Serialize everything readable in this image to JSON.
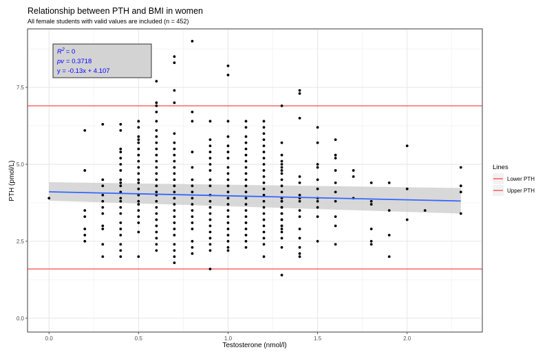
{
  "chart_data": {
    "type": "scatter",
    "title": "Relationship between PTH and BMI in women",
    "subtitle": "All female students with valid values are included (n = 452)",
    "xlabel": "Testosterone (nmol/l)",
    "ylabel": "PTH (pmol/L)",
    "xlim": [
      -0.12,
      2.42
    ],
    "ylim": [
      -0.45,
      9.4
    ],
    "xticks": [
      0.0,
      0.5,
      1.0,
      1.5,
      2.0
    ],
    "xtick_labels": [
      "0.0",
      "0.5",
      "1.0",
      "1.5",
      "2.0"
    ],
    "yticks": [
      0.0,
      2.5,
      5.0,
      7.5
    ],
    "ytick_labels": [
      "0.0",
      "2.5",
      "5.0",
      "7.5"
    ],
    "grid": true,
    "annotation": {
      "r2_symbol": "R",
      "r2_exp": "2",
      "r2_value": "= 0",
      "pv_label": "pv",
      "pv_value": "= 0.3718",
      "equation": "y = -0.13x + 4.107"
    },
    "regression": {
      "slope": -0.13,
      "intercept": 4.107,
      "x_range": [
        0.0,
        2.3
      ],
      "ci_lower": [
        3.82,
        3.4
      ],
      "ci_upper": [
        4.42,
        4.23
      ],
      "color": "#3366ff",
      "band_color": "#bebebe"
    },
    "hlines": [
      {
        "name": "Lower PTH",
        "y": 1.6,
        "color": "#ff3333"
      },
      {
        "name": "Upper PTH",
        "y": 6.9,
        "color": "#ff3333"
      }
    ],
    "legend": {
      "title": "Lines",
      "placement": "right",
      "entries": [
        "Lower PTH",
        "Upper PTH"
      ]
    },
    "points": [
      [
        0.0,
        3.9
      ],
      [
        0.2,
        6.1
      ],
      [
        0.2,
        4.8
      ],
      [
        0.2,
        3.5
      ],
      [
        0.2,
        3.3
      ],
      [
        0.2,
        2.9
      ],
      [
        0.2,
        2.7
      ],
      [
        0.2,
        2.5
      ],
      [
        0.3,
        6.3
      ],
      [
        0.3,
        4.5
      ],
      [
        0.3,
        4.3
      ],
      [
        0.3,
        4.0
      ],
      [
        0.3,
        3.8
      ],
      [
        0.3,
        3.6
      ],
      [
        0.3,
        3.4
      ],
      [
        0.3,
        3.0
      ],
      [
        0.3,
        2.9
      ],
      [
        0.3,
        2.4
      ],
      [
        0.3,
        2.0
      ],
      [
        0.4,
        6.3
      ],
      [
        0.4,
        6.1
      ],
      [
        0.4,
        5.5
      ],
      [
        0.4,
        5.4
      ],
      [
        0.4,
        5.2
      ],
      [
        0.4,
        5.0
      ],
      [
        0.4,
        4.8
      ],
      [
        0.4,
        4.5
      ],
      [
        0.4,
        4.4
      ],
      [
        0.4,
        4.3
      ],
      [
        0.4,
        4.1
      ],
      [
        0.4,
        3.9
      ],
      [
        0.4,
        3.8
      ],
      [
        0.4,
        3.6
      ],
      [
        0.4,
        3.4
      ],
      [
        0.4,
        3.1
      ],
      [
        0.4,
        2.9
      ],
      [
        0.4,
        2.7
      ],
      [
        0.4,
        2.4
      ],
      [
        0.4,
        2.2
      ],
      [
        0.4,
        2.0
      ],
      [
        0.5,
        6.4
      ],
      [
        0.5,
        6.2
      ],
      [
        0.5,
        5.9
      ],
      [
        0.5,
        5.8
      ],
      [
        0.5,
        5.7
      ],
      [
        0.5,
        5.5
      ],
      [
        0.5,
        5.3
      ],
      [
        0.5,
        5.1
      ],
      [
        0.5,
        4.9
      ],
      [
        0.5,
        4.7
      ],
      [
        0.5,
        4.5
      ],
      [
        0.5,
        4.4
      ],
      [
        0.5,
        4.2
      ],
      [
        0.5,
        4.0
      ],
      [
        0.5,
        3.8
      ],
      [
        0.5,
        3.7
      ],
      [
        0.5,
        3.5
      ],
      [
        0.5,
        3.3
      ],
      [
        0.5,
        3.1
      ],
      [
        0.5,
        2.8
      ],
      [
        0.5,
        2.0
      ],
      [
        0.6,
        7.7
      ],
      [
        0.6,
        7.0
      ],
      [
        0.6,
        6.9
      ],
      [
        0.6,
        6.7
      ],
      [
        0.6,
        6.4
      ],
      [
        0.6,
        6.1
      ],
      [
        0.6,
        5.9
      ],
      [
        0.6,
        5.7
      ],
      [
        0.6,
        5.5
      ],
      [
        0.6,
        5.3
      ],
      [
        0.6,
        5.1
      ],
      [
        0.6,
        4.9
      ],
      [
        0.6,
        4.7
      ],
      [
        0.6,
        4.5
      ],
      [
        0.6,
        4.3
      ],
      [
        0.6,
        4.1
      ],
      [
        0.6,
        4.0
      ],
      [
        0.6,
        3.8
      ],
      [
        0.6,
        3.6
      ],
      [
        0.6,
        3.4
      ],
      [
        0.6,
        3.2
      ],
      [
        0.6,
        3.0
      ],
      [
        0.6,
        2.8
      ],
      [
        0.6,
        2.6
      ],
      [
        0.6,
        2.4
      ],
      [
        0.6,
        2.2
      ],
      [
        0.7,
        8.5
      ],
      [
        0.7,
        8.3
      ],
      [
        0.7,
        7.4
      ],
      [
        0.7,
        7.0
      ],
      [
        0.7,
        6.0
      ],
      [
        0.7,
        5.7
      ],
      [
        0.7,
        5.5
      ],
      [
        0.7,
        5.3
      ],
      [
        0.7,
        5.1
      ],
      [
        0.7,
        4.9
      ],
      [
        0.7,
        4.7
      ],
      [
        0.7,
        4.5
      ],
      [
        0.7,
        4.3
      ],
      [
        0.7,
        4.1
      ],
      [
        0.7,
        3.9
      ],
      [
        0.7,
        3.7
      ],
      [
        0.7,
        3.5
      ],
      [
        0.7,
        3.3
      ],
      [
        0.7,
        3.1
      ],
      [
        0.7,
        2.9
      ],
      [
        0.7,
        2.7
      ],
      [
        0.7,
        2.4
      ],
      [
        0.7,
        2.2
      ],
      [
        0.7,
        2.0
      ],
      [
        0.7,
        1.8
      ],
      [
        0.8,
        9.0
      ],
      [
        0.8,
        6.7
      ],
      [
        0.8,
        6.4
      ],
      [
        0.8,
        5.4
      ],
      [
        0.8,
        4.9
      ],
      [
        0.8,
        4.5
      ],
      [
        0.8,
        4.3
      ],
      [
        0.8,
        4.1
      ],
      [
        0.8,
        3.9
      ],
      [
        0.8,
        3.7
      ],
      [
        0.8,
        3.5
      ],
      [
        0.8,
        3.3
      ],
      [
        0.8,
        3.1
      ],
      [
        0.8,
        2.9
      ],
      [
        0.8,
        2.5
      ],
      [
        0.8,
        2.3
      ],
      [
        0.8,
        2.1
      ],
      [
        0.9,
        6.4
      ],
      [
        0.9,
        5.8
      ],
      [
        0.9,
        5.6
      ],
      [
        0.9,
        5.4
      ],
      [
        0.9,
        5.2
      ],
      [
        0.9,
        5.0
      ],
      [
        0.9,
        4.8
      ],
      [
        0.9,
        4.5
      ],
      [
        0.9,
        4.3
      ],
      [
        0.9,
        4.0
      ],
      [
        0.9,
        3.8
      ],
      [
        0.9,
        3.6
      ],
      [
        0.9,
        3.4
      ],
      [
        0.9,
        3.2
      ],
      [
        0.9,
        3.0
      ],
      [
        0.9,
        2.8
      ],
      [
        0.9,
        2.6
      ],
      [
        0.9,
        2.4
      ],
      [
        0.9,
        2.2
      ],
      [
        0.9,
        1.6
      ],
      [
        1.0,
        8.2
      ],
      [
        1.0,
        7.9
      ],
      [
        1.0,
        6.4
      ],
      [
        1.0,
        5.9
      ],
      [
        1.0,
        5.6
      ],
      [
        1.0,
        5.4
      ],
      [
        1.0,
        5.2
      ],
      [
        1.0,
        4.9
      ],
      [
        1.0,
        4.7
      ],
      [
        1.0,
        4.5
      ],
      [
        1.0,
        4.3
      ],
      [
        1.0,
        4.1
      ],
      [
        1.0,
        3.9
      ],
      [
        1.0,
        3.7
      ],
      [
        1.0,
        3.5
      ],
      [
        1.0,
        3.3
      ],
      [
        1.0,
        3.1
      ],
      [
        1.0,
        2.9
      ],
      [
        1.0,
        2.7
      ],
      [
        1.0,
        2.5
      ],
      [
        1.0,
        2.3
      ],
      [
        1.0,
        2.2
      ],
      [
        1.1,
        6.4
      ],
      [
        1.1,
        6.2
      ],
      [
        1.1,
        5.9
      ],
      [
        1.1,
        5.7
      ],
      [
        1.1,
        5.5
      ],
      [
        1.1,
        5.3
      ],
      [
        1.1,
        5.1
      ],
      [
        1.1,
        4.9
      ],
      [
        1.1,
        4.7
      ],
      [
        1.1,
        4.5
      ],
      [
        1.1,
        4.3
      ],
      [
        1.1,
        4.1
      ],
      [
        1.1,
        3.9
      ],
      [
        1.1,
        3.7
      ],
      [
        1.1,
        3.5
      ],
      [
        1.1,
        3.3
      ],
      [
        1.1,
        3.1
      ],
      [
        1.1,
        2.9
      ],
      [
        1.1,
        2.7
      ],
      [
        1.1,
        2.5
      ],
      [
        1.1,
        2.3
      ],
      [
        1.2,
        6.4
      ],
      [
        1.2,
        6.2
      ],
      [
        1.2,
        6.0
      ],
      [
        1.2,
        5.8
      ],
      [
        1.2,
        5.6
      ],
      [
        1.2,
        5.4
      ],
      [
        1.2,
        5.2
      ],
      [
        1.2,
        5.0
      ],
      [
        1.2,
        4.8
      ],
      [
        1.2,
        4.6
      ],
      [
        1.2,
        4.4
      ],
      [
        1.2,
        4.2
      ],
      [
        1.2,
        4.0
      ],
      [
        1.2,
        3.8
      ],
      [
        1.2,
        3.6
      ],
      [
        1.2,
        3.4
      ],
      [
        1.2,
        3.2
      ],
      [
        1.2,
        3.0
      ],
      [
        1.2,
        2.8
      ],
      [
        1.2,
        2.6
      ],
      [
        1.2,
        2.4
      ],
      [
        1.2,
        2.0
      ],
      [
        1.3,
        5.3
      ],
      [
        1.3,
        5.1
      ],
      [
        1.3,
        4.9
      ],
      [
        1.3,
        4.7
      ],
      [
        1.3,
        4.5
      ],
      [
        1.3,
        4.3
      ],
      [
        1.3,
        4.1
      ],
      [
        1.3,
        3.9
      ],
      [
        1.3,
        3.8
      ],
      [
        1.3,
        3.6
      ],
      [
        1.3,
        3.4
      ],
      [
        1.3,
        3.2
      ],
      [
        1.3,
        3.0
      ],
      [
        1.3,
        2.8
      ],
      [
        1.3,
        2.6
      ],
      [
        1.3,
        6.9
      ],
      [
        1.3,
        5.7
      ],
      [
        1.3,
        5.0
      ],
      [
        1.3,
        4.8
      ],
      [
        1.3,
        3.8
      ],
      [
        1.3,
        3.6
      ],
      [
        1.3,
        3.4
      ],
      [
        1.3,
        3.2
      ],
      [
        1.3,
        3.0
      ],
      [
        1.3,
        2.9
      ],
      [
        1.3,
        2.3
      ],
      [
        1.3,
        1.4
      ],
      [
        1.4,
        7.4
      ],
      [
        1.4,
        7.3
      ],
      [
        1.4,
        6.5
      ],
      [
        1.4,
        4.6
      ],
      [
        1.4,
        4.4
      ],
      [
        1.4,
        4.0
      ],
      [
        1.4,
        3.9
      ],
      [
        1.4,
        3.8
      ],
      [
        1.4,
        3.5
      ],
      [
        1.4,
        3.3
      ],
      [
        1.4,
        2.9
      ],
      [
        1.4,
        2.6
      ],
      [
        1.4,
        2.3
      ],
      [
        1.4,
        2.1
      ],
      [
        1.4,
        2.0
      ],
      [
        1.5,
        6.2
      ],
      [
        1.5,
        5.7
      ],
      [
        1.5,
        5.0
      ],
      [
        1.5,
        4.9
      ],
      [
        1.5,
        4.5
      ],
      [
        1.5,
        4.2
      ],
      [
        1.5,
        3.9
      ],
      [
        1.5,
        3.8
      ],
      [
        1.5,
        3.6
      ],
      [
        1.5,
        3.3
      ],
      [
        1.5,
        2.5
      ],
      [
        1.6,
        5.8
      ],
      [
        1.6,
        5.3
      ],
      [
        1.6,
        5.2
      ],
      [
        1.6,
        4.8
      ],
      [
        1.6,
        4.4
      ],
      [
        1.6,
        4.1
      ],
      [
        1.6,
        3.8
      ],
      [
        1.6,
        3.3
      ],
      [
        1.6,
        3.0
      ],
      [
        1.6,
        2.4
      ],
      [
        1.7,
        4.8
      ],
      [
        1.7,
        4.6
      ],
      [
        1.7,
        3.9
      ],
      [
        1.8,
        4.4
      ],
      [
        1.8,
        3.8
      ],
      [
        1.8,
        3.7
      ],
      [
        1.8,
        2.9
      ],
      [
        1.8,
        2.5
      ],
      [
        1.8,
        2.4
      ],
      [
        1.9,
        4.4
      ],
      [
        1.9,
        3.5
      ],
      [
        1.9,
        2.7
      ],
      [
        1.9,
        2.0
      ],
      [
        2.0,
        5.6
      ],
      [
        2.0,
        4.2
      ],
      [
        2.0,
        3.2
      ],
      [
        2.1,
        3.5
      ],
      [
        2.3,
        4.9
      ],
      [
        2.3,
        4.3
      ],
      [
        2.3,
        4.1
      ],
      [
        2.3,
        3.4
      ]
    ]
  }
}
